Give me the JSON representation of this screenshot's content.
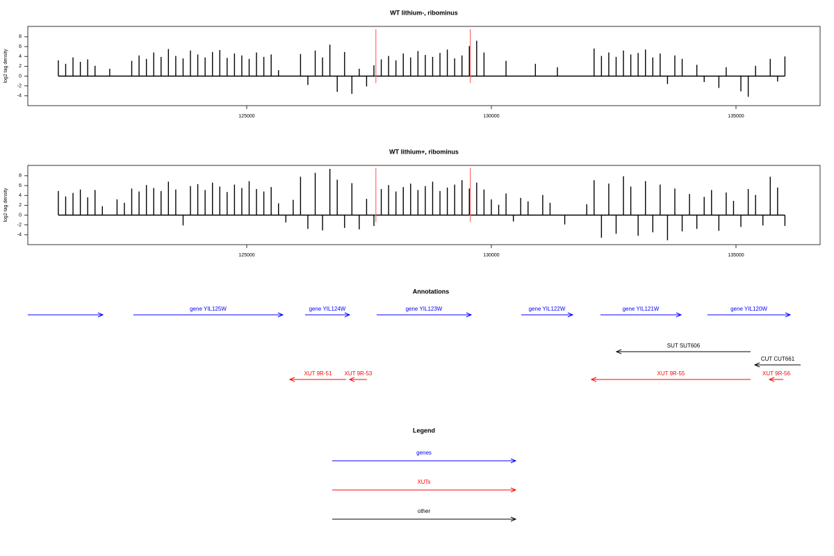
{
  "chart_data": [
    {
      "type": "bar",
      "title": "WT lithium-, ribominus",
      "ylabel": "log2 tag density",
      "color": "#000000",
      "x": [
        121150,
        121300,
        121450,
        121600,
        121750,
        121900,
        122050,
        122200,
        122350,
        122500,
        122650,
        122800,
        122950,
        123100,
        123250,
        123400,
        123550,
        123700,
        123850,
        124000,
        124150,
        124300,
        124450,
        124600,
        124750,
        124900,
        125050,
        125200,
        125350,
        125500,
        125650,
        125800,
        125950,
        126100,
        126250,
        126400,
        126550,
        126700,
        126850,
        127000,
        127150,
        127300,
        127450,
        127600,
        127750,
        127900,
        128050,
        128200,
        128350,
        128500,
        128650,
        128800,
        128950,
        129100,
        129250,
        129400,
        129550,
        129700,
        129850,
        130000,
        130150,
        130300,
        130450,
        130600,
        130750,
        130900,
        131050,
        131200,
        131350,
        131500,
        131650,
        131800,
        131950,
        132100,
        132250,
        132400,
        132550,
        132700,
        132850,
        133000,
        133150,
        133300,
        133450,
        133600,
        133750,
        133900,
        134050,
        134200,
        134350,
        134500,
        134650,
        134800,
        134950,
        135100,
        135250,
        135400,
        135550,
        135700,
        135850,
        136000
      ],
      "values": [
        3.2,
        2.5,
        3.8,
        2.9,
        3.4,
        2.1,
        0,
        1.5,
        0,
        0,
        3.1,
        4.2,
        3.5,
        4.8,
        3.9,
        5.5,
        4.1,
        3.6,
        5.2,
        4.4,
        3.8,
        4.9,
        5.3,
        3.7,
        4.6,
        4.2,
        3.5,
        4.8,
        3.9,
        4.4,
        1.2,
        0,
        0,
        4.5,
        -1.8,
        5.2,
        3.8,
        6.4,
        -3.2,
        4.9,
        -3.6,
        1.5,
        -2.1,
        2.2,
        3.4,
        4.1,
        3.2,
        4.6,
        3.8,
        5.1,
        4.3,
        3.9,
        4.7,
        5.4,
        3.6,
        4.2,
        6.1,
        7.2,
        4.8,
        0,
        0,
        3.1,
        0,
        0,
        0,
        2.5,
        0,
        0,
        1.8,
        0,
        0,
        0,
        0,
        5.6,
        4.1,
        4.8,
        3.9,
        5.2,
        4.4,
        4.7,
        5.4,
        3.8,
        4.6,
        -1.6,
        4.2,
        3.5,
        0,
        2.3,
        -1.2,
        0,
        -2.4,
        1.8,
        0,
        -3.1,
        -4.2,
        2.1,
        0,
        3.5,
        -1.1,
        4.0
      ],
      "vlines": [
        127640,
        129570
      ],
      "vline_color": "#ff6666",
      "xlim": [
        120526,
        136719
      ],
      "xticks": [
        125000,
        130000,
        135000
      ],
      "ylim": [
        -6,
        10.1
      ],
      "yticks": [
        -4,
        -2,
        0,
        2,
        4,
        6,
        8
      ]
    },
    {
      "type": "bar",
      "title": "WT lithium+, ribominus",
      "ylabel": "log2 tag density",
      "color": "#000000",
      "x": [
        121150,
        121300,
        121450,
        121600,
        121750,
        121900,
        122050,
        122200,
        122350,
        122500,
        122650,
        122800,
        122950,
        123100,
        123250,
        123400,
        123550,
        123700,
        123850,
        124000,
        124150,
        124300,
        124450,
        124600,
        124750,
        124900,
        125050,
        125200,
        125350,
        125500,
        125650,
        125800,
        125950,
        126100,
        126250,
        126400,
        126550,
        126700,
        126850,
        127000,
        127150,
        127300,
        127450,
        127600,
        127750,
        127900,
        128050,
        128200,
        128350,
        128500,
        128650,
        128800,
        128950,
        129100,
        129250,
        129400,
        129550,
        129700,
        129850,
        130000,
        130150,
        130300,
        130450,
        130600,
        130750,
        130900,
        131050,
        131200,
        131350,
        131500,
        131650,
        131800,
        131950,
        132100,
        132250,
        132400,
        132550,
        132700,
        132850,
        133000,
        133150,
        133300,
        133450,
        133600,
        133750,
        133900,
        134050,
        134200,
        134350,
        134500,
        134650,
        134800,
        134950,
        135100,
        135250,
        135400,
        135550,
        135700,
        135850,
        136000
      ],
      "values": [
        4.9,
        3.8,
        4.5,
        5.2,
        3.6,
        5.1,
        1.8,
        0,
        3.2,
        2.5,
        5.4,
        4.8,
        6.1,
        5.5,
        4.9,
        6.8,
        5.2,
        -2.1,
        5.9,
        6.3,
        5.1,
        6.6,
        5.8,
        4.7,
        6.2,
        5.5,
        6.9,
        5.3,
        4.8,
        5.7,
        2.4,
        -1.5,
        3.1,
        7.8,
        -2.8,
        8.6,
        -3.1,
        9.4,
        7.2,
        -2.6,
        6.5,
        -2.9,
        3.3,
        -2.2,
        5.3,
        6.1,
        4.8,
        5.7,
        6.4,
        5.1,
        5.9,
        6.8,
        4.9,
        5.6,
        6.2,
        7.1,
        5.4,
        6.6,
        5.2,
        3.2,
        2.1,
        4.4,
        -1.3,
        3.5,
        2.8,
        0,
        4.1,
        2.5,
        0,
        -1.9,
        0,
        0,
        2.2,
        7.1,
        -4.6,
        6.4,
        -3.8,
        7.9,
        5.8,
        -4.2,
        6.9,
        -3.5,
        6.2,
        -5.1,
        5.4,
        -3.3,
        4.3,
        -2.8,
        3.7,
        5.1,
        -3.2,
        4.6,
        2.9,
        -2.4,
        5.3,
        4.1,
        -2.1,
        7.8,
        5.6,
        -2.2
      ],
      "vlines": [
        127640,
        129570
      ],
      "vline_color": "#ff6666",
      "xlim": [
        120526,
        136719
      ],
      "xticks": [
        125000,
        130000,
        135000
      ],
      "ylim": [
        -6,
        10.1
      ],
      "yticks": [
        -4,
        -2,
        0,
        2,
        4,
        6,
        8
      ]
    },
    {
      "type": "arrows",
      "title": "Annotations",
      "xlim": [
        120526,
        136719
      ],
      "features": [
        {
          "group": "genes",
          "start": 120526,
          "end": 122060
        },
        {
          "group": "genes",
          "label": "gene YIL125W",
          "start": 122685,
          "end": 125739
        },
        {
          "group": "genes",
          "label": "gene YIL124W",
          "start": 126193,
          "end": 127102
        },
        {
          "group": "genes",
          "label": "gene YIL123W",
          "start": 127656,
          "end": 129588
        },
        {
          "group": "genes",
          "label": "gene YIL122W",
          "start": 130611,
          "end": 131662
        },
        {
          "group": "genes",
          "label": "gene YIL121W",
          "start": 132230,
          "end": 133878
        },
        {
          "group": "genes",
          "label": "gene YIL120W",
          "start": 134418,
          "end": 136108
        },
        {
          "group": "other",
          "label": "SUT SUT606",
          "start": 135298,
          "end": 132557
        },
        {
          "group": "other",
          "label": "CUT CUT661",
          "start": 136321,
          "end": 135384
        },
        {
          "group": "XUTs",
          "label": "XUT 9R-51",
          "start": 127031,
          "end": 125881
        },
        {
          "group": "XUTs",
          "label": "XUT 9R-53",
          "start": 127457,
          "end": 127102
        },
        {
          "group": "XUTs",
          "label": "XUT 9R-55",
          "start": 135298,
          "end": 132045
        },
        {
          "group": "XUTs",
          "label": "XUT 9R-56",
          "start": 135966,
          "end": 135682
        }
      ],
      "legend": {
        "title": "Legend",
        "items": [
          {
            "label": "genes",
            "color": "#0000ff"
          },
          {
            "label": "XUTs",
            "color": "#ff0000"
          },
          {
            "label": "other",
            "color": "#000000"
          }
        ]
      }
    }
  ]
}
